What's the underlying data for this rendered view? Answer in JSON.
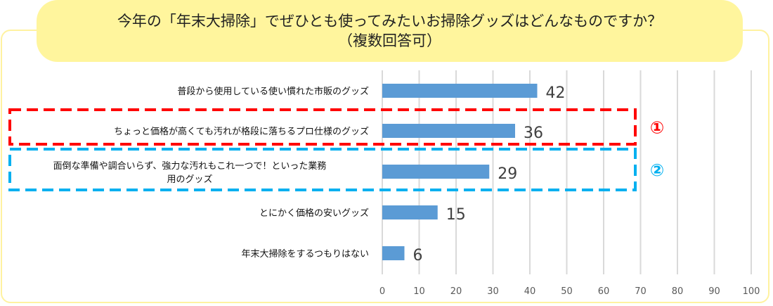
{
  "chart_data": {
    "type": "bar",
    "orientation": "horizontal",
    "title_line1": "今年の「年末大掃除」でぜひとも使ってみたいお掃除グッズはどんなものですか？",
    "title_line2": "（複数回答可）",
    "categories": [
      [
        "普段から使用している使い慣れた市販のグッズ"
      ],
      [
        "ちょっと価格が高くても汚れが格段に落ちるプロ仕様のグッズ"
      ],
      [
        "面倒な準備や調合いらず、強力な汚れもこれ一つで！といった業務",
        "用のグッズ"
      ],
      [
        "とにかく価格の安いグッズ"
      ],
      [
        "年末大掃除をするつもりはない"
      ]
    ],
    "values": [
      42,
      36,
      29,
      15,
      6
    ],
    "xlim": [
      0,
      100
    ],
    "xticks": [
      "0",
      "10",
      "20",
      "30",
      "40",
      "50",
      "60",
      "70",
      "80",
      "90",
      "100"
    ],
    "grid": true,
    "bar_color": "#5B9BD5",
    "highlights": [
      {
        "category_index": 1,
        "label": "①",
        "color": "#FF0000"
      },
      {
        "category_index": 2,
        "label": "②",
        "color": "#00B0F0"
      }
    ]
  }
}
